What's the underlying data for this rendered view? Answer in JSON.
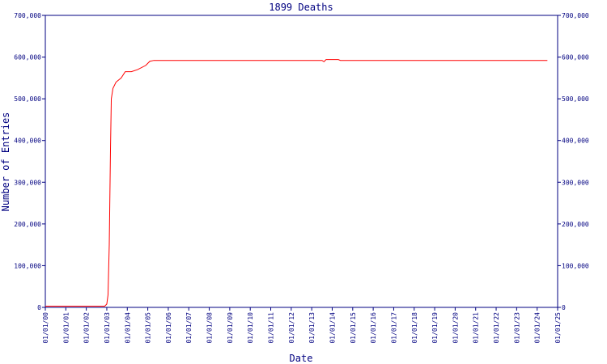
{
  "chart_data": {
    "type": "line",
    "title": "1899 Deaths",
    "x_label": "Date",
    "y_label": "Number of Entries",
    "xlim": [
      2000,
      2025
    ],
    "xticks": [
      {
        "value": 2000,
        "label": "01/01/00"
      },
      {
        "value": 2001,
        "label": "01/01/01"
      },
      {
        "value": 2002,
        "label": "01/01/02"
      },
      {
        "value": 2003,
        "label": "01/01/03"
      },
      {
        "value": 2004,
        "label": "01/01/04"
      },
      {
        "value": 2005,
        "label": "01/01/05"
      },
      {
        "value": 2006,
        "label": "01/01/06"
      },
      {
        "value": 2007,
        "label": "01/01/07"
      },
      {
        "value": 2008,
        "label": "01/01/08"
      },
      {
        "value": 2009,
        "label": "01/01/09"
      },
      {
        "value": 2010,
        "label": "01/01/10"
      },
      {
        "value": 2011,
        "label": "01/01/11"
      },
      {
        "value": 2012,
        "label": "01/01/12"
      },
      {
        "value": 2013,
        "label": "01/01/13"
      },
      {
        "value": 2014,
        "label": "01/01/14"
      },
      {
        "value": 2015,
        "label": "01/01/15"
      },
      {
        "value": 2016,
        "label": "01/01/16"
      },
      {
        "value": 2017,
        "label": "01/01/17"
      },
      {
        "value": 2018,
        "label": "01/01/18"
      },
      {
        "value": 2019,
        "label": "01/01/19"
      },
      {
        "value": 2020,
        "label": "01/01/20"
      },
      {
        "value": 2021,
        "label": "01/01/21"
      },
      {
        "value": 2022,
        "label": "01/01/22"
      },
      {
        "value": 2023,
        "label": "01/01/23"
      },
      {
        "value": 2024,
        "label": "01/01/24"
      },
      {
        "value": 2025,
        "label": "01/01/25"
      }
    ],
    "ylim": [
      0,
      700000
    ],
    "yticks": [
      0,
      {
        "value": 100000,
        "label": "100,000"
      },
      {
        "value": 200000,
        "label": "200,000"
      },
      {
        "value": 300000,
        "label": "300,000"
      },
      {
        "value": 400000,
        "label": "400,000"
      },
      {
        "value": 500000,
        "label": "500,000"
      },
      {
        "value": 600000,
        "label": "600,000"
      },
      {
        "value": 700000,
        "label": "700,000"
      }
    ],
    "x": [
      2000,
      2002.9,
      2003.0,
      2003.06,
      2003.12,
      2003.18,
      2003.22,
      2003.3,
      2003.45,
      2003.7,
      2003.9,
      2004.2,
      2004.5,
      2004.9,
      2005.1,
      2005.3,
      2013.5,
      2013.6,
      2013.7,
      2014.3,
      2014.4,
      2024.5
    ],
    "series": [
      {
        "color": "#ff0000",
        "values": [
          3000,
          3000,
          8000,
          30000,
          150000,
          380000,
          500000,
          525000,
          540000,
          550000,
          565000,
          565000,
          570000,
          580000,
          590000,
          592000,
          592000,
          589000,
          594000,
          594000,
          592000,
          592000
        ]
      }
    ],
    "axis_color": "#000080",
    "grid": false
  }
}
